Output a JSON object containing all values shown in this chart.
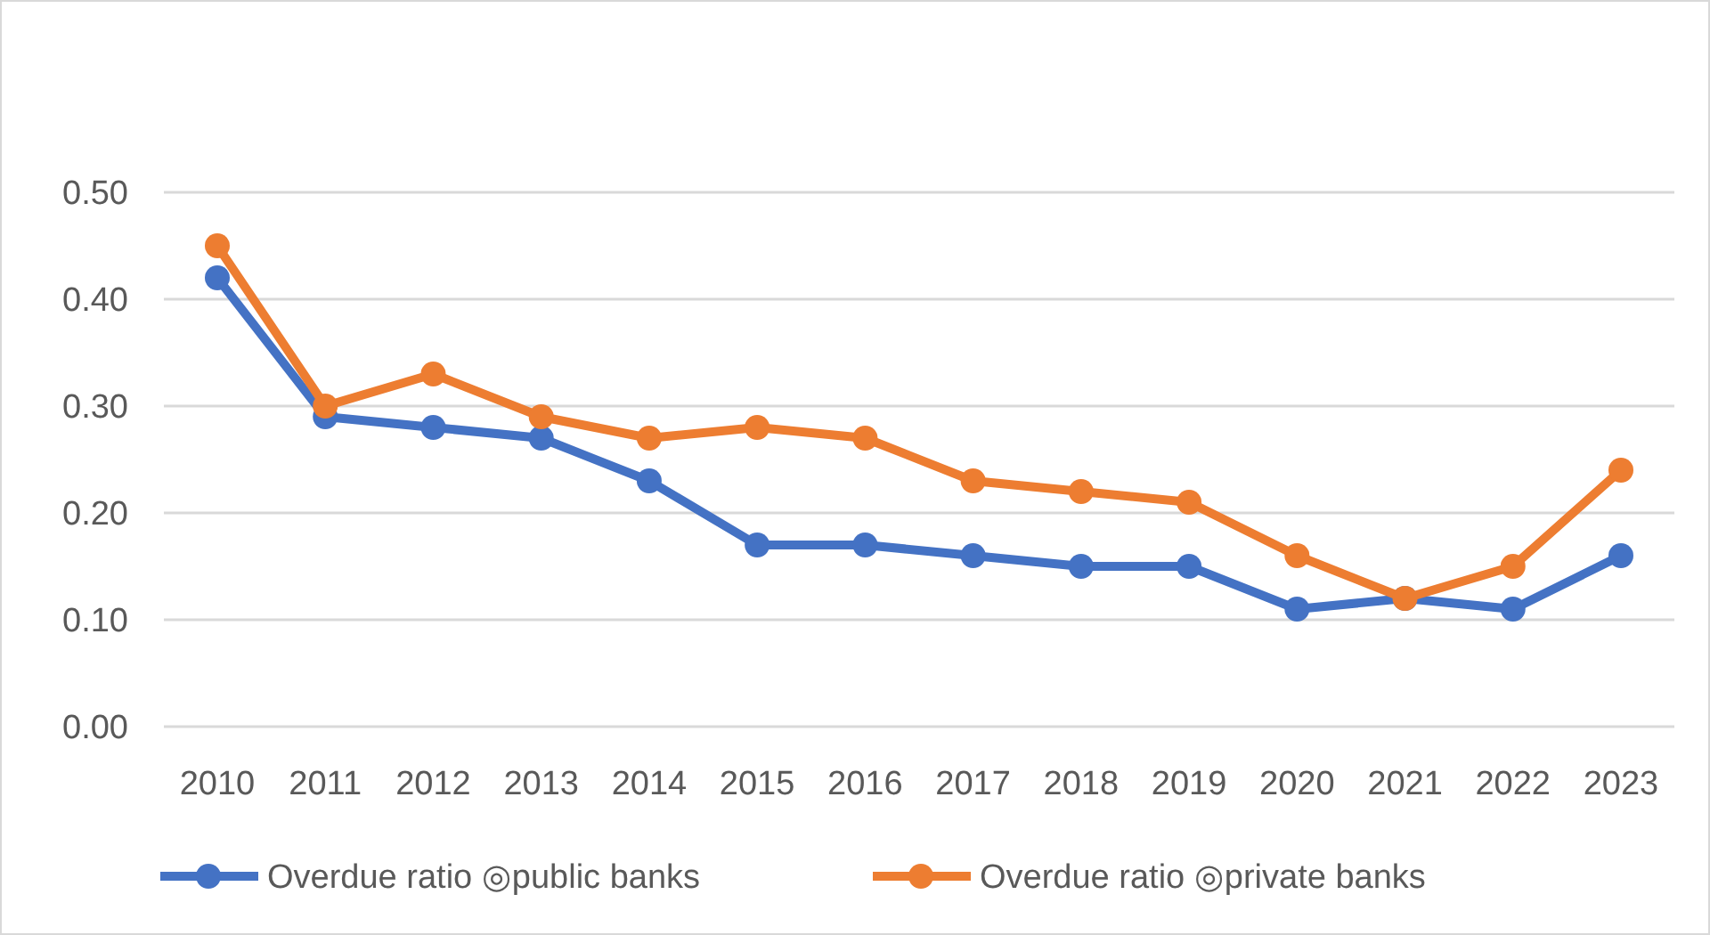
{
  "chart_data": {
    "type": "line",
    "categories": [
      "2010",
      "2011",
      "2012",
      "2013",
      "2014",
      "2015",
      "2016",
      "2017",
      "2018",
      "2019",
      "2020",
      "2021",
      "2022",
      "2023"
    ],
    "series": [
      {
        "name": "Overdue ratio  ◎public banks",
        "color": "#4472c4",
        "values": [
          0.42,
          0.29,
          0.28,
          0.27,
          0.23,
          0.17,
          0.17,
          0.16,
          0.15,
          0.15,
          0.11,
          0.12,
          0.11,
          0.16
        ]
      },
      {
        "name": "Overdue ratio  ◎private banks",
        "color": "#ed7d31",
        "values": [
          0.45,
          0.3,
          0.33,
          0.29,
          0.27,
          0.28,
          0.27,
          0.23,
          0.22,
          0.21,
          0.16,
          0.12,
          0.15,
          0.24
        ]
      }
    ],
    "ylim": [
      0,
      0.5
    ],
    "yticks": [
      {
        "value": 0,
        "label": "0.00"
      },
      {
        "value": 0.1,
        "label": "0.10"
      },
      {
        "value": 0.2,
        "label": "0.20"
      },
      {
        "value": 0.3,
        "label": "0.30"
      },
      {
        "value": 0.4,
        "label": "0.40"
      },
      {
        "value": 0.5,
        "label": "0.50"
      }
    ],
    "grid": "y",
    "legend": "bottom",
    "marker": "circle",
    "line_style": "solid"
  }
}
